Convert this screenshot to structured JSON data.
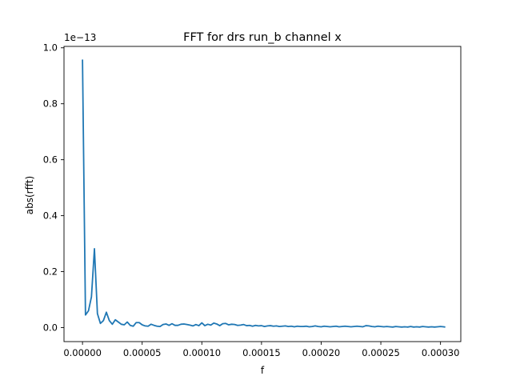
{
  "chart_data": {
    "type": "line",
    "title": "FFT for drs run_b channel x",
    "xlabel": "f",
    "ylabel": "abs(rfft)",
    "y_offset_label": "1e−13",
    "xlim": [
      -1.55e-05,
      0.000317
    ],
    "ylim": [
      -0.05,
      1.005
    ],
    "xticks": [
      {
        "value": 0.0,
        "label": "0.00000"
      },
      {
        "value": 5e-05,
        "label": "0.00005"
      },
      {
        "value": 0.0001,
        "label": "0.00010"
      },
      {
        "value": 0.00015,
        "label": "0.00015"
      },
      {
        "value": 0.0002,
        "label": "0.00020"
      },
      {
        "value": 0.00025,
        "label": "0.00025"
      },
      {
        "value": 0.0003,
        "label": "0.00030"
      }
    ],
    "yticks": [
      {
        "value": 0.0,
        "label": "0.0"
      },
      {
        "value": 0.2,
        "label": "0.2"
      },
      {
        "value": 0.4,
        "label": "0.4"
      },
      {
        "value": 0.6,
        "label": "0.6"
      },
      {
        "value": 0.8,
        "label": "0.8"
      },
      {
        "value": 1.0,
        "label": "1.0"
      }
    ],
    "grid": false,
    "series": [
      {
        "color": "#1f77b4",
        "x": [
          0.0,
          2.5e-06,
          5e-06,
          7.5e-06,
          1e-05,
          1.25e-05,
          1.5e-05,
          1.75e-05,
          2e-05,
          2.25e-05,
          2.5e-05,
          2.75e-05,
          3e-05,
          3.25e-05,
          3.5e-05,
          3.75e-05,
          4e-05,
          4.25e-05,
          4.5e-05,
          4.75e-05,
          5e-05,
          5.25e-05,
          5.5e-05,
          5.75e-05,
          6e-05,
          6.25e-05,
          6.5e-05,
          6.75e-05,
          7e-05,
          7.25e-05,
          7.5e-05,
          7.75e-05,
          8e-05,
          8.25e-05,
          8.5e-05,
          8.75e-05,
          9e-05,
          9.25e-05,
          9.5e-05,
          9.75e-05,
          0.0001,
          0.0001025,
          0.000105,
          0.0001075,
          0.00011,
          0.0001125,
          0.000115,
          0.0001175,
          0.00012,
          0.0001225,
          0.000125,
          0.0001275,
          0.00013,
          0.0001325,
          0.000135,
          0.0001375,
          0.00014,
          0.0001425,
          0.000145,
          0.0001475,
          0.00015,
          0.0001525,
          0.000155,
          0.0001575,
          0.00016,
          0.0001625,
          0.000165,
          0.0001675,
          0.00017,
          0.0001725,
          0.000175,
          0.0001775,
          0.00018,
          0.0001825,
          0.000185,
          0.0001875,
          0.00019,
          0.0001925,
          0.000195,
          0.0001975,
          0.0002,
          0.0002025,
          0.000205,
          0.0002075,
          0.00021,
          0.0002125,
          0.000215,
          0.0002175,
          0.00022,
          0.0002225,
          0.000225,
          0.0002275,
          0.00023,
          0.0002325,
          0.000235,
          0.0002375,
          0.00024,
          0.0002425,
          0.000245,
          0.0002475,
          0.00025,
          0.0002525,
          0.000255,
          0.0002575,
          0.00026,
          0.0002625,
          0.000265,
          0.0002675,
          0.00027,
          0.0002725,
          0.000275,
          0.0002775,
          0.00028,
          0.0002825,
          0.000285,
          0.0002875,
          0.00029,
          0.0002925,
          0.000295,
          0.0002975,
          0.0003,
          0.0003025,
          0.000304
        ],
        "y": [
          0.958,
          0.045,
          0.06,
          0.11,
          0.282,
          0.05,
          0.015,
          0.025,
          0.055,
          0.025,
          0.012,
          0.028,
          0.02,
          0.012,
          0.01,
          0.02,
          0.008,
          0.005,
          0.018,
          0.018,
          0.01,
          0.006,
          0.005,
          0.012,
          0.008,
          0.005,
          0.004,
          0.011,
          0.013,
          0.008,
          0.014,
          0.008,
          0.008,
          0.012,
          0.013,
          0.011,
          0.009,
          0.006,
          0.011,
          0.007,
          0.017,
          0.007,
          0.012,
          0.009,
          0.016,
          0.013,
          0.007,
          0.014,
          0.015,
          0.01,
          0.012,
          0.011,
          0.008,
          0.009,
          0.011,
          0.007,
          0.008,
          0.005,
          0.008,
          0.006,
          0.007,
          0.004,
          0.006,
          0.007,
          0.005,
          0.006,
          0.004,
          0.005,
          0.006,
          0.004,
          0.005,
          0.003,
          0.005,
          0.004,
          0.004,
          0.005,
          0.003,
          0.004,
          0.006,
          0.004,
          0.003,
          0.005,
          0.004,
          0.003,
          0.004,
          0.005,
          0.003,
          0.004,
          0.005,
          0.004,
          0.003,
          0.004,
          0.005,
          0.004,
          0.003,
          0.007,
          0.006,
          0.004,
          0.003,
          0.005,
          0.004,
          0.003,
          0.004,
          0.003,
          0.002,
          0.004,
          0.003,
          0.002,
          0.003,
          0.002,
          0.004,
          0.002,
          0.003,
          0.002,
          0.004,
          0.003,
          0.002,
          0.003,
          0.002,
          0.003,
          0.004,
          0.003,
          0.002
        ]
      }
    ]
  }
}
